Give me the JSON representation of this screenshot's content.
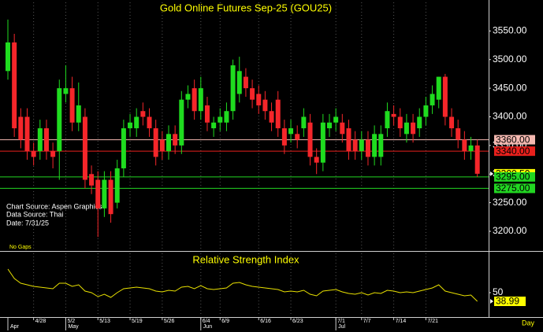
{
  "chart_data": [
    {
      "type": "candlestick",
      "title": "Gold Online Futures Sep-25 (GOU25)",
      "annotations": [
        "Chart Source: Aspen Graphics",
        "Data Source: Thai",
        "Date:   7/31/25"
      ],
      "footnote": "No Gaps",
      "up_color": "#1fdc1f",
      "down_color": "#f5262a",
      "categories": [
        null,
        null,
        null,
        null,
        "4/28",
        null,
        null,
        null,
        null,
        "5/2",
        null,
        null,
        null,
        null,
        "5/13",
        null,
        null,
        null,
        null,
        "5/19",
        null,
        null,
        null,
        null,
        "5/26",
        null,
        null,
        null,
        null,
        null,
        "6/4",
        null,
        null,
        "6/9",
        null,
        null,
        null,
        null,
        null,
        "6/16",
        null,
        null,
        null,
        null,
        "6/23",
        null,
        null,
        null,
        null,
        null,
        null,
        "7/1",
        null,
        null,
        null,
        "7/7",
        null,
        null,
        null,
        null,
        "7/14",
        null,
        null,
        null,
        null,
        "7/21",
        null,
        null,
        null,
        null,
        null,
        null,
        null,
        null,
        null
      ],
      "months": [
        "Apr",
        null,
        null,
        null,
        null,
        null,
        null,
        null,
        null,
        "May",
        null,
        null,
        null,
        null,
        null,
        null,
        null,
        null,
        null,
        null,
        null,
        null,
        null,
        null,
        null,
        null,
        null,
        null,
        null,
        null,
        "Jun",
        null,
        null,
        null,
        null,
        null,
        null,
        null,
        null,
        null,
        null,
        null,
        null,
        null,
        null,
        null,
        null,
        null,
        null,
        null,
        null,
        "Jul",
        null,
        null,
        null,
        null,
        null,
        null,
        null,
        null,
        null,
        null,
        null,
        null,
        null,
        null,
        null,
        null,
        null,
        null,
        null,
        null,
        null,
        null
      ],
      "open": [
        3480,
        3530,
        3400,
        3400,
        3340,
        3340,
        3380,
        3340,
        3340,
        3440,
        3450,
        3390,
        3400,
        3300,
        3290,
        3240,
        3290,
        3250,
        3310,
        3380,
        3380,
        3410,
        3400,
        3380,
        3360,
        3340,
        3370,
        3350,
        3430,
        3450,
        3410,
        3420,
        3380,
        3390,
        3390,
        3410,
        3440,
        3470,
        3450,
        3440,
        3430,
        3410,
        3430,
        3380,
        3370,
        3370,
        3380,
        3390,
        3330,
        3320,
        3380,
        3390,
        3390,
        3380,
        3360,
        3340,
        3360,
        3330,
        3330,
        3380,
        3405,
        3400,
        3370,
        3390,
        3380,
        3400,
        3420,
        3430,
        3470,
        3400,
        3380,
        3360,
        3340,
        3350
      ],
      "high": [
        3570,
        3545,
        3415,
        3415,
        3355,
        3395,
        3395,
        3355,
        3465,
        3490,
        3470,
        3460,
        3415,
        3315,
        3305,
        3305,
        3305,
        3325,
        3395,
        3405,
        3415,
        3425,
        3415,
        3395,
        3375,
        3385,
        3385,
        3445,
        3455,
        3465,
        3470,
        3435,
        3400,
        3415,
        3425,
        3500,
        3505,
        3485,
        3465,
        3455,
        3445,
        3425,
        3445,
        3395,
        3395,
        3385,
        3415,
        3405,
        3345,
        3405,
        3405,
        3415,
        3405,
        3395,
        3375,
        3375,
        3375,
        3385,
        3385,
        3425,
        3420,
        3415,
        3405,
        3405,
        3415,
        3435,
        3455,
        3470,
        3475,
        3415,
        3395,
        3375,
        3365,
        3360
      ],
      "low": [
        3465,
        3365,
        3345,
        3325,
        3315,
        3325,
        3325,
        3310,
        3290,
        3425,
        3375,
        3375,
        3275,
        3265,
        3190,
        3225,
        3215,
        3240,
        3295,
        3365,
        3365,
        3385,
        3365,
        3315,
        3325,
        3325,
        3335,
        3335,
        3415,
        3395,
        3395,
        3375,
        3365,
        3375,
        3375,
        3395,
        3425,
        3435,
        3415,
        3405,
        3395,
        3375,
        3365,
        3335,
        3355,
        3345,
        3365,
        3315,
        3300,
        3305,
        3365,
        3375,
        3355,
        3325,
        3325,
        3325,
        3315,
        3315,
        3315,
        3365,
        3385,
        3365,
        3355,
        3355,
        3365,
        3385,
        3405,
        3415,
        3385,
        3365,
        3345,
        3325,
        3325,
        3295
      ],
      "close": [
        3530,
        3380,
        3360,
        3340,
        3330,
        3380,
        3340,
        3330,
        3450,
        3450,
        3390,
        3420,
        3290,
        3280,
        3240,
        3290,
        3230,
        3310,
        3380,
        3390,
        3400,
        3400,
        3380,
        3330,
        3340,
        3370,
        3350,
        3430,
        3440,
        3410,
        3450,
        3390,
        3390,
        3400,
        3410,
        3490,
        3480,
        3450,
        3430,
        3420,
        3410,
        3390,
        3380,
        3350,
        3380,
        3360,
        3400,
        3330,
        3320,
        3390,
        3390,
        3400,
        3370,
        3340,
        3340,
        3360,
        3330,
        3370,
        3370,
        3410,
        3400,
        3380,
        3390,
        3370,
        3400,
        3420,
        3440,
        3470,
        3400,
        3380,
        3360,
        3340,
        3350,
        3300.5
      ],
      "ylim": [
        3167,
        3600
      ],
      "yticks": [
        {
          "value": 3200,
          "label": "3200.00"
        },
        {
          "value": 3250,
          "label": "3250.00"
        },
        {
          "value": 3300,
          "label": "3300.00"
        },
        {
          "value": 3350,
          "label": "3350.00"
        },
        {
          "value": 3400,
          "label": "3400.00"
        },
        {
          "value": 3450,
          "label": "3450.00"
        },
        {
          "value": 3500,
          "label": "3500.00"
        },
        {
          "value": 3550,
          "label": "3550.00"
        }
      ],
      "levels": [
        {
          "value": 3360,
          "label": "3360.00",
          "color": "#f4b8b0",
          "line": true
        },
        {
          "value": 3340,
          "label": "3340.00",
          "color": "#e8201c",
          "line": true
        },
        {
          "value": 3300.5,
          "label": "3300.50",
          "color": "#ffff00",
          "line": false
        },
        {
          "value": 3295,
          "label": "3295.00",
          "color": "#22d622",
          "line": true
        },
        {
          "value": 3275,
          "label": "3275.00",
          "color": "#22d622",
          "line": true
        }
      ]
    },
    {
      "type": "line",
      "title": "Relative Strength Index",
      "x_axis_label": "Day",
      "color": "#e8e000",
      "values": [
        80,
        68,
        62,
        60,
        58,
        57,
        56,
        55,
        62,
        62,
        58,
        60,
        52,
        50,
        45,
        48,
        44,
        50,
        55,
        56,
        57,
        56,
        55,
        52,
        51,
        53,
        52,
        57,
        58,
        55,
        59,
        55,
        54,
        55,
        56,
        62,
        63,
        60,
        58,
        57,
        56,
        55,
        54,
        51,
        52,
        51,
        53,
        48,
        46,
        52,
        53,
        54,
        51,
        49,
        48,
        50,
        47,
        50,
        49,
        53,
        52,
        50,
        51,
        50,
        52,
        54,
        56,
        60,
        52,
        50,
        48,
        46,
        47,
        38.99
      ],
      "ylim": [
        20,
        100
      ],
      "yticks": [
        50
      ]
    }
  ]
}
